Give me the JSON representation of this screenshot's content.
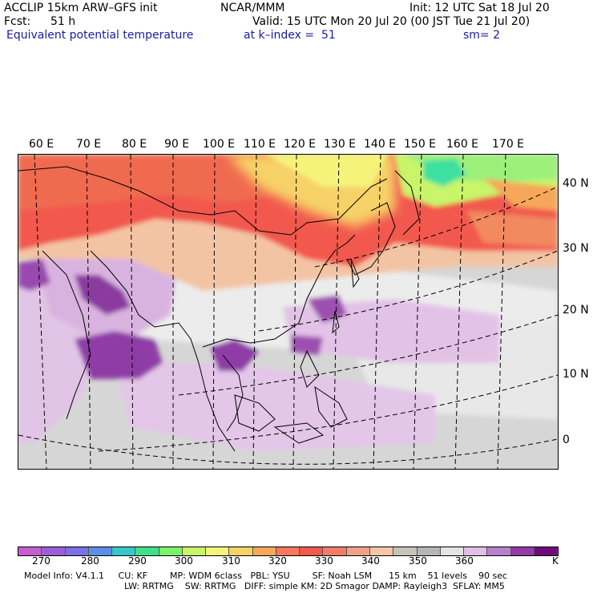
{
  "header": {
    "line1_left": "ACCLIP 15km ARW–GFS init",
    "line1_mid": "NCAR/MMM",
    "line1_right": "Init: 12 UTC Sat 18 Jul 20",
    "fcst_label": "Fcst:",
    "fcst_value": "51 h",
    "valid": "Valid: 15 UTC Mon 20 Jul 20 (00 JST Tue 21 Jul 20)",
    "field": "Equivalent potential temperature",
    "level": "at k–index =  51",
    "smooth": "sm= 2"
  },
  "map": {
    "lon_labels": [
      "60 E",
      "70 E",
      "80 E",
      "90 E",
      "100 E",
      "110 E",
      "120 E",
      "130 E",
      "140 E",
      "150 E",
      "160 E",
      "170 E"
    ],
    "lat_labels": [
      "40 N",
      "30 N",
      "20 N",
      "10 N",
      "0"
    ]
  },
  "colorbar": {
    "colors": [
      "#c45fcf",
      "#9c5fd8",
      "#7b70e4",
      "#5b8fe6",
      "#36c8c8",
      "#3ee08a",
      "#7cf26a",
      "#c8f56a",
      "#f6f37a",
      "#f7d268",
      "#f6a85a",
      "#f7785a",
      "#f2584e",
      "#f07d6a",
      "#f2a088",
      "#f3c6a8",
      "#c8c3b8",
      "#b6b6b6",
      "#e4e4e4",
      "#e2bfe6",
      "#b980d0",
      "#933ca8",
      "#6f0a7a"
    ],
    "tick_labels": [
      "270",
      "280",
      "290",
      "300",
      "310",
      "320",
      "330",
      "340",
      "350",
      "360"
    ],
    "unit": "K"
  },
  "footer": {
    "line1": "Model Info: V4.1.1     CU: KF        MP: WDM 6class   PBL: YSU        SF: Noah LSM      15 km    51 levels    90 sec",
    "line2": "LW: RRTMG    SW: RRTMG   DIFF: simple KM: 2D Smagor DAMP: Rayleigh3  SFLAY: MM5"
  }
}
